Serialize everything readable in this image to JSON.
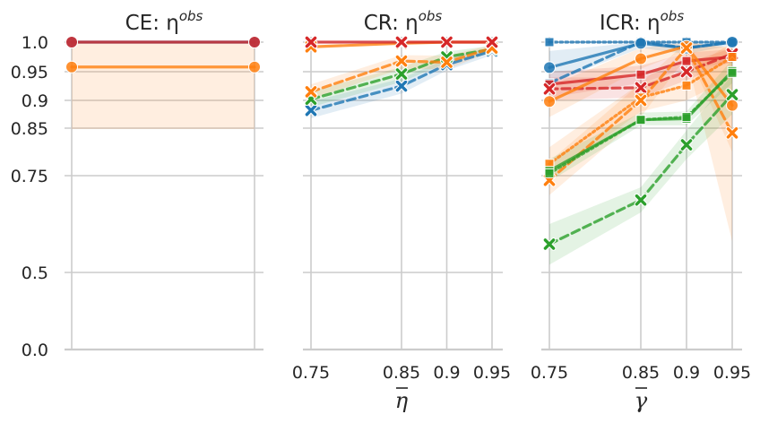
{
  "figure": {
    "colors": {
      "blue": "#1f77b4",
      "orange": "#ff7f0e",
      "green": "#2ca02c",
      "red": "#d62728"
    },
    "y_ticks": [
      {
        "value": 0.0,
        "label": "0.0"
      },
      {
        "value": 0.5,
        "label": "0.5"
      },
      {
        "value": 0.75,
        "label": "0.75"
      },
      {
        "value": 0.85,
        "label": "0.85"
      },
      {
        "value": 0.9,
        "label": "0.9"
      },
      {
        "value": 0.95,
        "label": "0.95"
      },
      {
        "value": 1.0,
        "label": "1.0"
      }
    ]
  },
  "chart_data": [
    {
      "type": "line",
      "title": "CE: η^obs",
      "title_main": "CE: η",
      "title_sup": "obs",
      "xlabel": "",
      "xlabel_main": "",
      "ylim": [
        0,
        1
      ],
      "x_range": [
        0.75,
        0.95
      ],
      "x_ticks": [],
      "grid": true,
      "series": [
        {
          "color": "orange",
          "dash": "solid",
          "marker": "circle",
          "x": [
            0.75,
            0.95
          ],
          "values": [
            0.958,
            0.958
          ],
          "band": [
            0.848,
            1.0
          ]
        },
        {
          "color": "blue",
          "dash": "solid",
          "marker": "circle",
          "x": [
            0.75,
            0.95
          ],
          "values": [
            1.0,
            1.0
          ]
        },
        {
          "color": "red",
          "dash": "solid",
          "marker": "circle",
          "x": [
            0.75,
            0.95
          ],
          "values": [
            1.0,
            1.0
          ]
        }
      ]
    },
    {
      "type": "line",
      "title": "CR: η^obs",
      "title_main": "CR: η",
      "title_sup": "obs",
      "xlabel": "η̄",
      "xlabel_main": "η",
      "ylim": [
        0,
        1
      ],
      "x_range": [
        0.75,
        0.95
      ],
      "x_ticks": [
        {
          "value": 0.75,
          "label": "0.75"
        },
        {
          "value": 0.85,
          "label": "0.85"
        },
        {
          "value": 0.9,
          "label": "0.9"
        },
        {
          "value": 0.95,
          "label": "0.95"
        }
      ],
      "grid": true,
      "series": [
        {
          "color": "blue",
          "dash": "dashed",
          "marker": "x",
          "x": [
            0.75,
            0.85,
            0.9,
            0.95
          ],
          "values": [
            0.882,
            0.925,
            0.962,
            0.985
          ],
          "band_low": [
            0.868,
            0.912,
            0.952,
            0.978
          ],
          "band_high": [
            0.898,
            0.938,
            0.972,
            0.992
          ]
        },
        {
          "color": "green",
          "dash": "dashed",
          "marker": "x",
          "x": [
            0.75,
            0.85,
            0.9,
            0.95
          ],
          "values": [
            0.902,
            0.946,
            0.975,
            0.988
          ],
          "band_low": [
            0.888,
            0.932,
            0.965,
            0.981
          ],
          "band_high": [
            0.916,
            0.958,
            0.984,
            0.994
          ]
        },
        {
          "color": "orange",
          "dash": "dashed",
          "marker": "x",
          "x": [
            0.75,
            0.85,
            0.9,
            0.95
          ],
          "values": [
            0.915,
            0.968,
            0.966,
            0.99
          ],
          "band_low": [
            0.902,
            0.955,
            0.954,
            0.984
          ],
          "band_high": [
            0.928,
            0.978,
            0.977,
            0.995
          ]
        },
        {
          "color": "orange",
          "dash": "solid",
          "marker": "x",
          "x": [
            0.75,
            0.85,
            0.9,
            0.95
          ],
          "values": [
            0.992,
            0.998,
            1.0,
            1.0
          ]
        },
        {
          "color": "red",
          "dash": "solid",
          "marker": "x",
          "x": [
            0.75,
            0.85,
            0.9,
            0.95
          ],
          "values": [
            1.0,
            1.0,
            1.0,
            1.0
          ]
        }
      ]
    },
    {
      "type": "line",
      "title": "ICR: η^obs",
      "title_main": "ICR: η",
      "title_sup": "obs",
      "xlabel": "γ̄",
      "xlabel_main": "γ",
      "ylim": [
        0,
        1
      ],
      "x_range": [
        0.75,
        0.95
      ],
      "x_ticks": [
        {
          "value": 0.75,
          "label": "0.75"
        },
        {
          "value": 0.85,
          "label": "0.85"
        },
        {
          "value": 0.9,
          "label": "0.9"
        },
        {
          "value": 0.95,
          "label": "0.95"
        }
      ],
      "grid": true,
      "series": [
        {
          "color": "blue",
          "dash": "dotted",
          "marker": "square",
          "x": [
            0.75,
            0.85,
            0.9,
            0.95
          ],
          "values": [
            1.0,
            1.0,
            1.0,
            1.0
          ]
        },
        {
          "color": "blue",
          "dash": "dashed",
          "marker": "square",
          "x": [
            0.75,
            0.85,
            0.9,
            0.95
          ],
          "values": [
            0.93,
            1.0,
            0.99,
            1.0
          ]
        },
        {
          "color": "blue",
          "dash": "solid",
          "marker": "circle",
          "x": [
            0.75,
            0.85,
            0.9,
            0.95
          ],
          "values": [
            0.957,
            0.998,
            0.99,
            1.0
          ],
          "band_low": [
            0.93,
            0.99,
            0.98,
            0.995
          ],
          "band_high": [
            0.985,
            1.0,
            1.0,
            1.0
          ]
        },
        {
          "color": "red",
          "dash": "solid",
          "marker": "square",
          "x": [
            0.75,
            0.85,
            0.9,
            0.95
          ],
          "values": [
            0.928,
            0.945,
            0.968,
            0.975
          ],
          "band_low": [
            0.905,
            0.93,
            0.955,
            0.965
          ],
          "band_high": [
            0.95,
            0.96,
            0.982,
            0.988
          ]
        },
        {
          "color": "red",
          "dash": "dashed",
          "marker": "x",
          "x": [
            0.75,
            0.85,
            0.9,
            0.95
          ],
          "values": [
            0.92,
            0.922,
            0.95,
            0.98
          ],
          "band_low": [
            0.9,
            0.905,
            0.935,
            0.968
          ],
          "band_high": [
            0.94,
            0.94,
            0.965,
            0.99
          ]
        },
        {
          "color": "orange",
          "dash": "solid",
          "marker": "circle",
          "x": [
            0.75,
            0.85,
            0.9,
            0.95
          ],
          "values": [
            0.898,
            0.972,
            0.993,
            0.891
          ],
          "band_low": [
            0.87,
            0.955,
            0.985,
            0.8
          ],
          "band_high": [
            0.925,
            0.99,
            1.0,
            0.99
          ]
        },
        {
          "color": "orange",
          "dash": "dotted",
          "marker": "square",
          "x": [
            0.75,
            0.85,
            0.9,
            0.95
          ],
          "values": [
            0.775,
            0.905,
            0.926,
            0.975
          ],
          "band_low": [
            0.74,
            0.88,
            0.9,
            0.94
          ],
          "band_high": [
            0.81,
            0.93,
            0.95,
            1.0
          ]
        },
        {
          "color": "orange",
          "dash": "dashed",
          "marker": "x",
          "x": [
            0.75,
            0.85,
            0.9,
            0.95
          ],
          "values": [
            0.738,
            0.9,
            0.99,
            0.84
          ],
          "band_low": [
            0.7,
            0.87,
            0.975,
            0.58
          ],
          "band_high": [
            0.78,
            0.93,
            1.0,
            0.99
          ]
        },
        {
          "color": "green",
          "dash": "solid",
          "marker": "square",
          "x": [
            0.75,
            0.85,
            0.9,
            0.95
          ],
          "values": [
            0.76,
            0.865,
            0.867,
            0.951
          ],
          "band_low": [
            0.735,
            0.855,
            0.855,
            0.93
          ],
          "band_high": [
            0.785,
            0.878,
            0.88,
            0.97
          ]
        },
        {
          "color": "green",
          "dash": "dotted",
          "marker": "square",
          "x": [
            0.75,
            0.85,
            0.9,
            0.95
          ],
          "values": [
            0.755,
            0.865,
            0.87,
            0.948
          ]
        },
        {
          "color": "green",
          "dash": "dashed",
          "marker": "x",
          "x": [
            0.75,
            0.85,
            0.9,
            0.95
          ],
          "values": [
            0.573,
            0.687,
            0.815,
            0.91
          ],
          "band_low": [
            0.52,
            0.655,
            0.785,
            0.875
          ],
          "band_high": [
            0.625,
            0.72,
            0.845,
            0.945
          ]
        }
      ]
    }
  ]
}
